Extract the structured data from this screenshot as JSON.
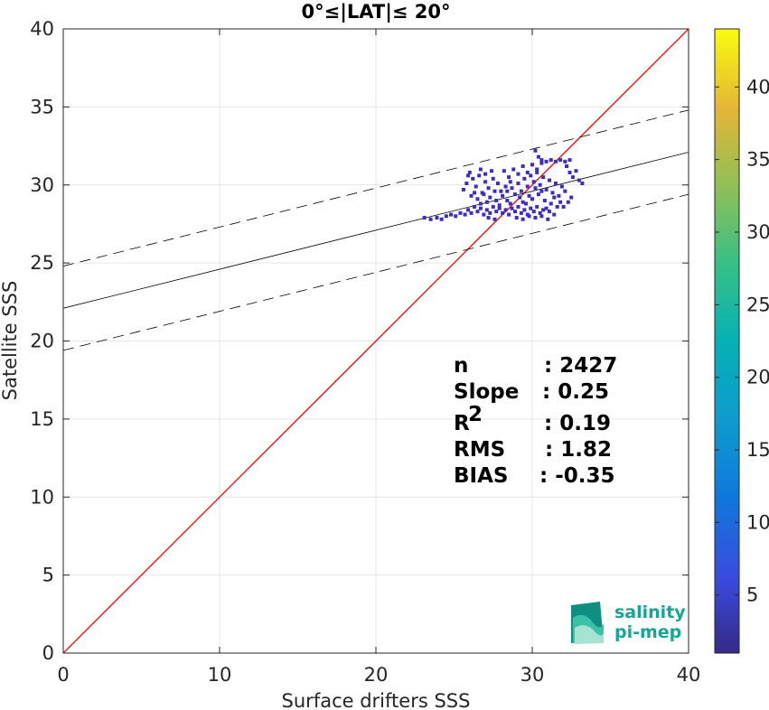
{
  "chart_data": {
    "type": "scatter",
    "title": "0°≤|LAT|≤ 20°",
    "xlabel": "Surface drifters SSS",
    "ylabel": "Satellite SSS",
    "xlim": [
      0,
      40
    ],
    "ylim": [
      0,
      40
    ],
    "xticks": [
      0,
      10,
      20,
      30,
      40
    ],
    "yticks": [
      0,
      5,
      10,
      15,
      20,
      25,
      30,
      35,
      40
    ],
    "grid": true,
    "colorbar": {
      "label": "",
      "range": [
        1,
        44
      ],
      "ticks": [
        5,
        10,
        15,
        20,
        25,
        30,
        35,
        40
      ],
      "colormap": "parula"
    },
    "identity_line": {
      "color": "#ff0000",
      "points": [
        [
          0,
          0
        ],
        [
          40,
          40
        ]
      ]
    },
    "fit_line": {
      "color": "#000000",
      "intercept": 22.1,
      "slope": 0.25
    },
    "confidence_lines": [
      {
        "style": "dashed",
        "intercept": 24.8,
        "slope": 0.25
      },
      {
        "style": "dashed",
        "intercept": 19.4,
        "slope": 0.25
      }
    ],
    "stats": [
      {
        "label": "n",
        "value": ": 2427"
      },
      {
        "label": "Slope",
        "value": ": 0.25"
      },
      {
        "label": "R",
        "sup": "2",
        "value": ": 0.19"
      },
      {
        "label": "RMS",
        "value": ": 1.82"
      },
      {
        "label": "BIAS",
        "value": ": -0.35"
      }
    ],
    "point_color": "#3a2ec4",
    "points": [
      [
        23.1,
        27.9
      ],
      [
        23.5,
        27.8
      ],
      [
        23.9,
        27.9
      ],
      [
        24.2,
        27.8
      ],
      [
        24.5,
        28.0
      ],
      [
        24.8,
        28.1
      ],
      [
        25.1,
        28.0
      ],
      [
        25.4,
        28.2
      ],
      [
        25.7,
        28.1
      ],
      [
        25.9,
        28.4
      ],
      [
        26.1,
        28.2
      ],
      [
        26.3,
        28.6
      ],
      [
        26.5,
        28.3
      ],
      [
        26.7,
        28.5
      ],
      [
        26.9,
        28.1
      ],
      [
        27.1,
        28.4
      ],
      [
        27.3,
        28.2
      ],
      [
        27.5,
        28.6
      ],
      [
        27.7,
        28.3
      ],
      [
        27.9,
        28.5
      ],
      [
        28.1,
        28.2
      ],
      [
        28.3,
        28.4
      ],
      [
        28.5,
        28.1
      ],
      [
        28.7,
        28.5
      ],
      [
        28.9,
        28.3
      ],
      [
        29.1,
        28.6
      ],
      [
        29.3,
        28.2
      ],
      [
        29.5,
        28.4
      ],
      [
        29.7,
        28.1
      ],
      [
        29.9,
        28.5
      ],
      [
        30.1,
        28.3
      ],
      [
        30.3,
        28.6
      ],
      [
        30.5,
        28.2
      ],
      [
        30.7,
        28.4
      ],
      [
        30.9,
        28.5
      ],
      [
        31.1,
        28.3
      ],
      [
        26.0,
        30.8
      ],
      [
        26.2,
        30.4
      ],
      [
        26.4,
        29.9
      ],
      [
        26.6,
        30.6
      ],
      [
        26.8,
        29.5
      ],
      [
        27.0,
        30.2
      ],
      [
        27.2,
        29.8
      ],
      [
        27.4,
        30.9
      ],
      [
        27.6,
        29.6
      ],
      [
        25.6,
        29.7
      ],
      [
        25.8,
        30.1
      ],
      [
        26.1,
        29.3
      ],
      [
        26.5,
        29.1
      ],
      [
        26.9,
        29.4
      ],
      [
        27.3,
        29.2
      ],
      [
        27.7,
        29.0
      ],
      [
        28.1,
        29.3
      ],
      [
        28.4,
        29.0
      ],
      [
        28.7,
        29.8
      ],
      [
        28.9,
        29.4
      ],
      [
        29.1,
        30.1
      ],
      [
        29.3,
        29.6
      ],
      [
        29.5,
        30.4
      ],
      [
        29.7,
        29.9
      ],
      [
        29.9,
        30.6
      ],
      [
        30.1,
        30.2
      ],
      [
        30.3,
        30.8
      ],
      [
        30.5,
        30.0
      ],
      [
        30.7,
        30.5
      ],
      [
        30.9,
        29.7
      ],
      [
        31.1,
        30.3
      ],
      [
        31.3,
        29.5
      ],
      [
        31.5,
        30.1
      ],
      [
        31.7,
        29.3
      ],
      [
        31.9,
        29.9
      ],
      [
        32.1,
        29.6
      ],
      [
        28.2,
        30.9
      ],
      [
        28.5,
        30.5
      ],
      [
        28.8,
        31.0
      ],
      [
        29.1,
        30.7
      ],
      [
        29.4,
        31.2
      ],
      [
        29.7,
        30.8
      ],
      [
        30.0,
        31.3
      ],
      [
        30.3,
        31.0
      ],
      [
        30.6,
        31.4
      ],
      [
        30.2,
        32.2
      ],
      [
        30.4,
        31.8
      ],
      [
        30.6,
        31.6
      ],
      [
        30.9,
        31.5
      ],
      [
        31.2,
        31.6
      ],
      [
        31.5,
        31.5
      ],
      [
        31.8,
        31.6
      ],
      [
        32.1,
        31.5
      ],
      [
        32.4,
        31.6
      ],
      [
        32.2,
        31.2
      ],
      [
        32.4,
        30.8
      ],
      [
        32.6,
        30.5
      ],
      [
        32.8,
        30.9
      ],
      [
        33.0,
        30.3
      ],
      [
        33.2,
        30.1
      ],
      [
        32.5,
        29.2
      ],
      [
        32.3,
        28.9
      ],
      [
        32.0,
        28.6
      ],
      [
        29.0,
        27.9
      ],
      [
        29.4,
        27.8
      ],
      [
        29.8,
        28.0
      ],
      [
        30.2,
        27.9
      ],
      [
        30.6,
        28.0
      ],
      [
        31.0,
        27.8
      ],
      [
        31.4,
        28.1
      ],
      [
        27.2,
        27.9
      ],
      [
        27.6,
        27.8
      ],
      [
        28.0,
        29.6
      ],
      [
        28.3,
        29.9
      ],
      [
        28.6,
        30.2
      ],
      [
        29.2,
        29.2
      ],
      [
        29.6,
        28.8
      ],
      [
        30.0,
        29.1
      ],
      [
        30.4,
        29.4
      ],
      [
        30.8,
        29.0
      ],
      [
        31.2,
        28.8
      ],
      [
        31.6,
        28.6
      ],
      [
        31.8,
        28.9
      ],
      [
        31.4,
        29.2
      ],
      [
        30.6,
        29.6
      ],
      [
        30.2,
        29.8
      ],
      [
        29.8,
        29.3
      ],
      [
        29.4,
        28.9
      ],
      [
        28.6,
        28.8
      ],
      [
        28.4,
        29.6
      ],
      [
        27.8,
        30.1
      ],
      [
        27.5,
        30.4
      ],
      [
        26.7,
        28.8
      ],
      [
        27.1,
        28.9
      ],
      [
        27.9,
        28.7
      ],
      [
        26.3,
        29.5
      ],
      [
        25.9,
        30.6
      ],
      [
        26.7,
        31.0
      ],
      [
        27.0,
        30.7
      ]
    ]
  },
  "logo": {
    "line1": "salinity",
    "line2": "pi-mep"
  }
}
